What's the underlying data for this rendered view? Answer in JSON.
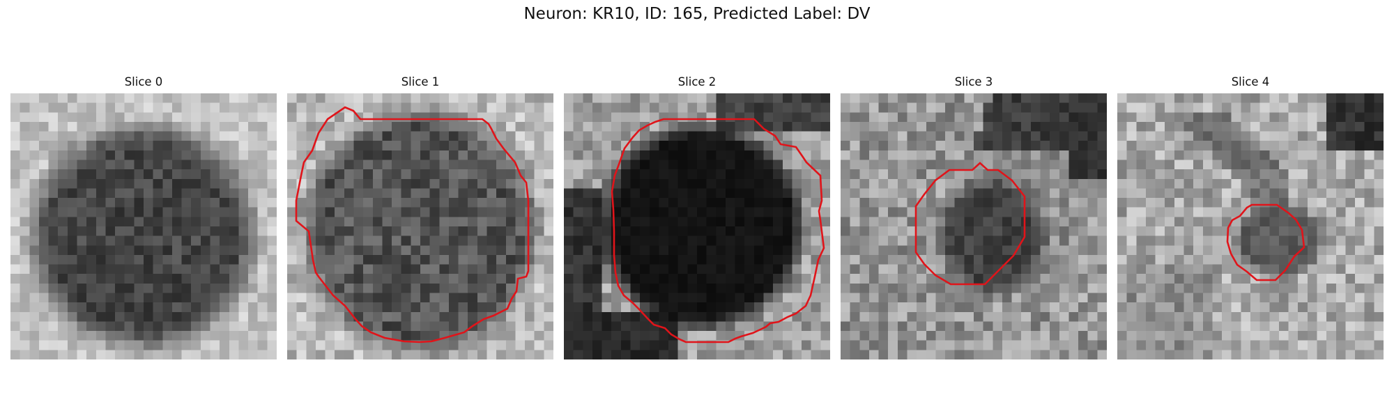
{
  "figure": {
    "title": "Neuron: KR10, ID: 165, Predicted Label: DV"
  },
  "contour_color": "#e0141a",
  "panels": [
    {
      "title": "Slice 0",
      "has_contour": false
    },
    {
      "title": "Slice 1",
      "has_contour": true
    },
    {
      "title": "Slice 2",
      "has_contour": true
    },
    {
      "title": "Slice 3",
      "has_contour": true
    },
    {
      "title": "Slice 4",
      "has_contour": true
    }
  ]
}
